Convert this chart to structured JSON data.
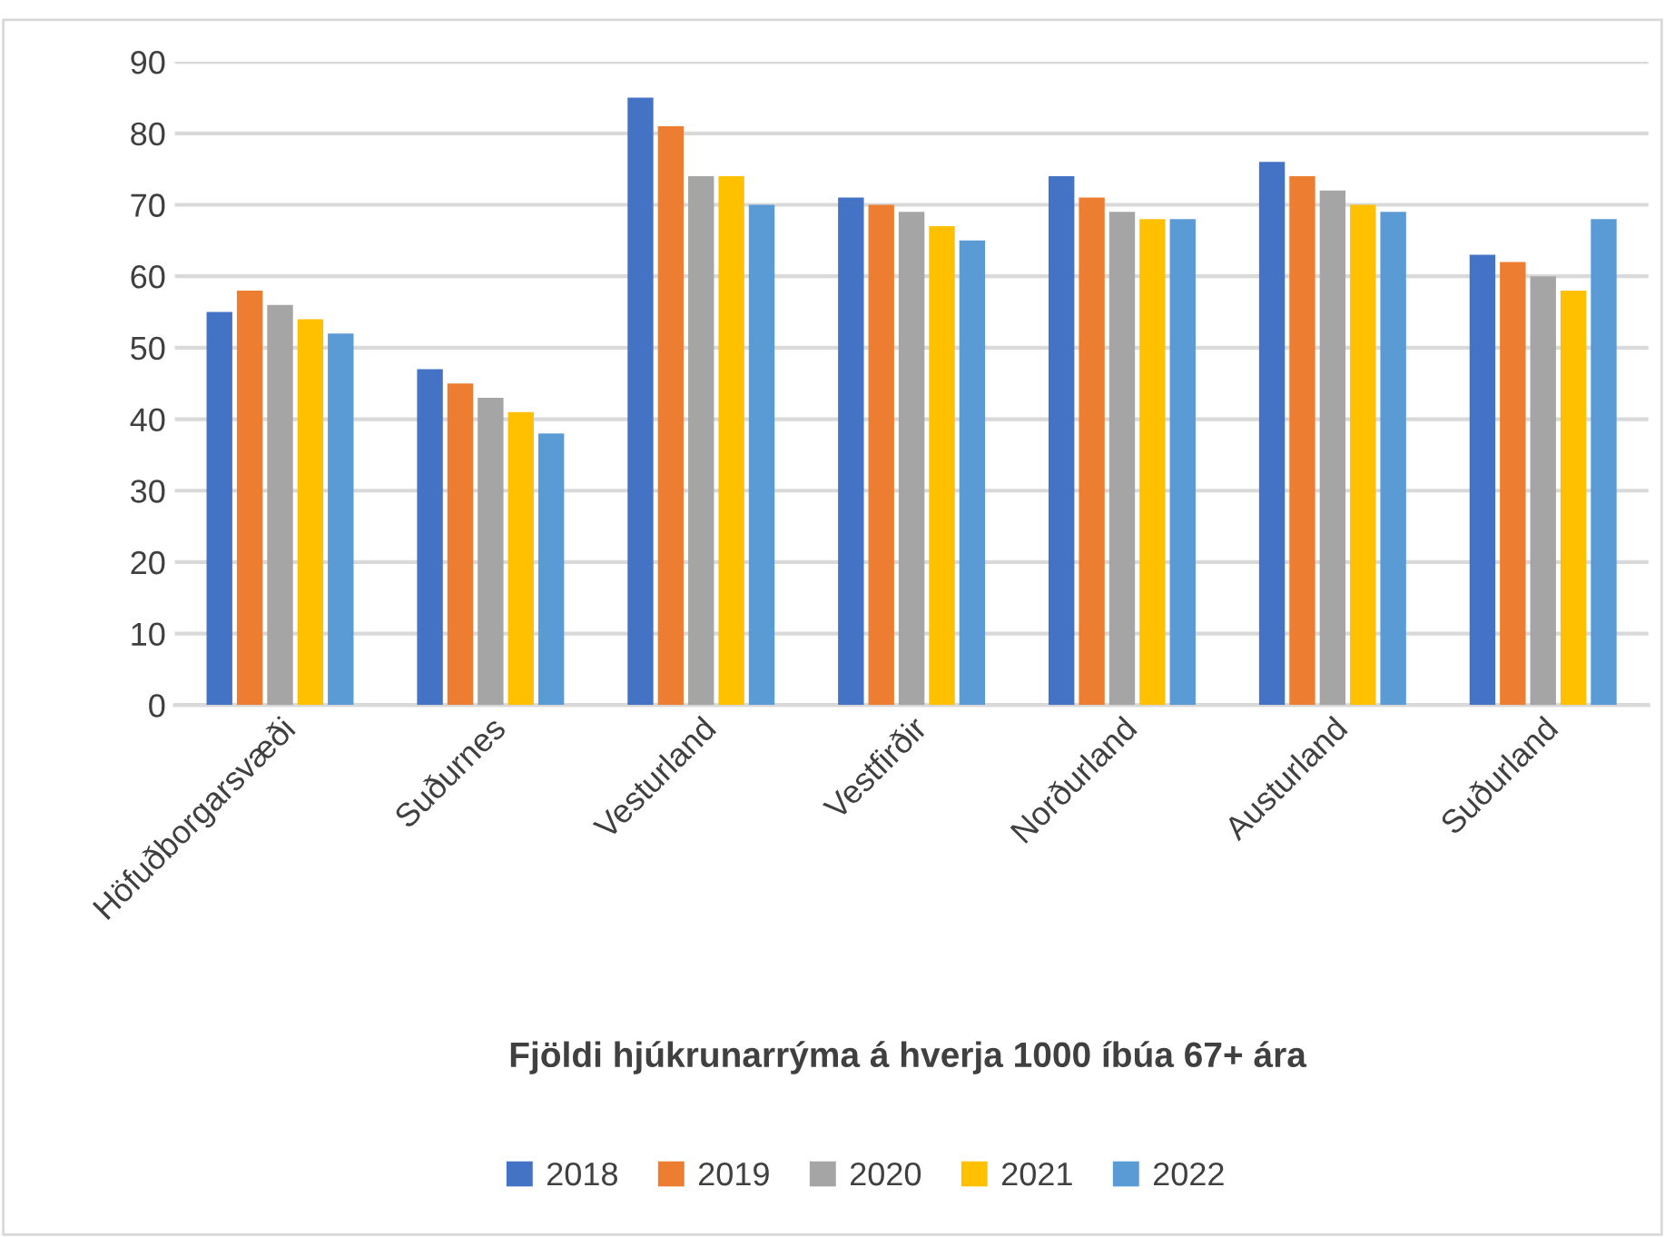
{
  "chart_data": {
    "type": "bar",
    "xlabel": "Fjöldi hjúkrunarrýma á hverja 1000 íbúa 67+ ára",
    "categories": [
      "Höfuðborgarsvæði",
      "Suðurnes",
      "Vesturland",
      "Vestfirðir",
      "Norðurland",
      "Austurland",
      "Suðurland"
    ],
    "series": [
      {
        "name": "2018",
        "color": "#4472c4",
        "values": [
          55,
          47,
          85,
          71,
          74,
          76,
          63
        ]
      },
      {
        "name": "2019",
        "color": "#ed7d31",
        "values": [
          58,
          45,
          81,
          70,
          71,
          74,
          62
        ]
      },
      {
        "name": "2020",
        "color": "#a5a5a5",
        "values": [
          56,
          43,
          74,
          69,
          69,
          72,
          60
        ]
      },
      {
        "name": "2021",
        "color": "#ffc000",
        "values": [
          54,
          41,
          74,
          67,
          68,
          70,
          58
        ]
      },
      {
        "name": "2022",
        "color": "#5b9bd5",
        "values": [
          52,
          38,
          70,
          65,
          68,
          69,
          68
        ]
      }
    ],
    "ylim": [
      0,
      90
    ],
    "yticks": [
      0,
      10,
      20,
      30,
      40,
      50,
      60,
      70,
      80,
      90
    ],
    "grid": "y",
    "legend": "bottom"
  }
}
